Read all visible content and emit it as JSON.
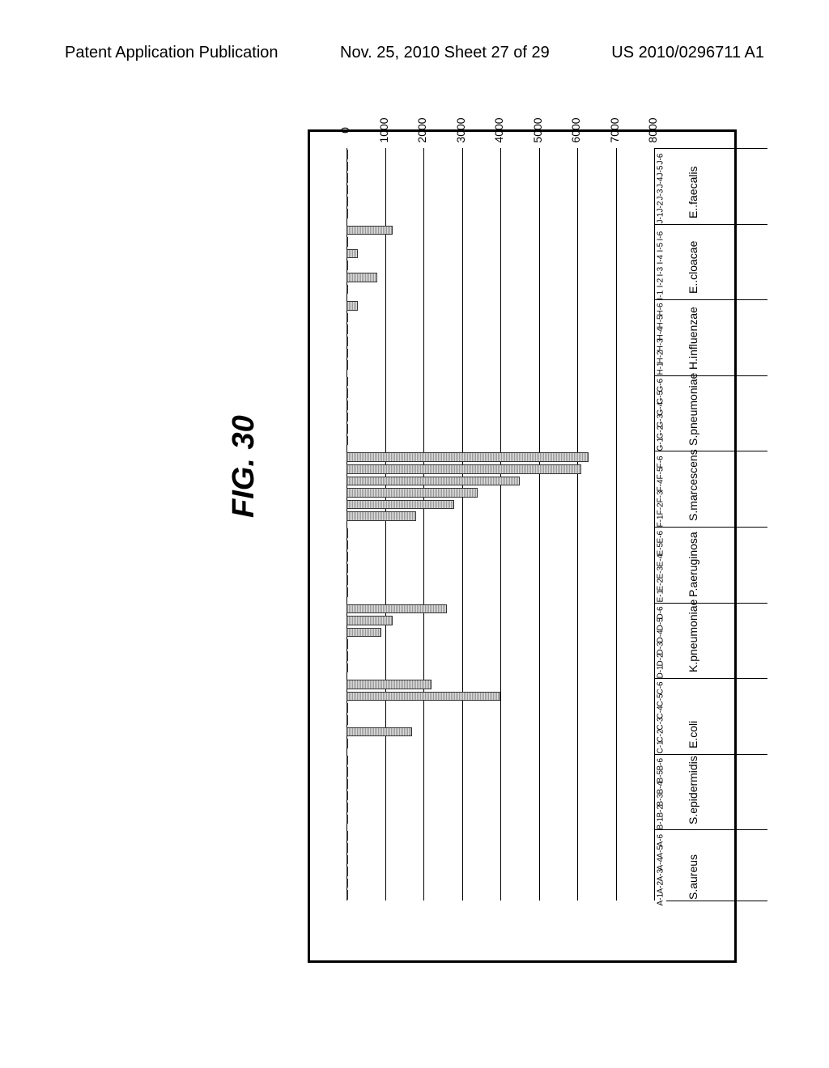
{
  "header": {
    "left": "Patent Application Publication",
    "mid": "Nov. 25, 2010  Sheet 27 of 29",
    "right": "US 2010/0296711 A1"
  },
  "figure_label": "FIG. 30",
  "chart": {
    "type": "bar",
    "orientation": "horizontal-rotated-90",
    "y_axis": {
      "min": 0,
      "max": 8000,
      "step": 1000
    },
    "background_color": "#ffffff",
    "grid_color": "#000000",
    "bar_border_color": "#333333",
    "bar_fill_color": "#bbbbbb",
    "tick_fontsize": 14,
    "bar_label_fontsize": 10,
    "category_label_fontsize": 14,
    "categories": [
      {
        "name": "S.aureus",
        "bars": [
          {
            "label": "A-1",
            "value": 20
          },
          {
            "label": "A-2",
            "value": 20
          },
          {
            "label": "A-3",
            "value": 20
          },
          {
            "label": "A-4",
            "value": 20
          },
          {
            "label": "A-5",
            "value": 20
          },
          {
            "label": "A-6",
            "value": 20
          }
        ]
      },
      {
        "name": "S.epidermidis",
        "bars": [
          {
            "label": "B-1",
            "value": 20
          },
          {
            "label": "B-2",
            "value": 20
          },
          {
            "label": "B-3",
            "value": 20
          },
          {
            "label": "B-4",
            "value": 20
          },
          {
            "label": "B-5",
            "value": 20
          },
          {
            "label": "B-6",
            "value": 20
          }
        ]
      },
      {
        "name": "E.coli",
        "bars": [
          {
            "label": "C-1",
            "value": 20
          },
          {
            "label": "C-2",
            "value": 1700
          },
          {
            "label": "C-3",
            "value": 20
          },
          {
            "label": "C-4",
            "value": 20
          },
          {
            "label": "C-5",
            "value": 4000
          },
          {
            "label": "C-6",
            "value": 2200
          }
        ]
      },
      {
        "name": "K.pneumoniae",
        "bars": [
          {
            "label": "D-1",
            "value": 20
          },
          {
            "label": "D-2",
            "value": 20
          },
          {
            "label": "D-3",
            "value": 20
          },
          {
            "label": "D-4",
            "value": 900
          },
          {
            "label": "D-5",
            "value": 1200
          },
          {
            "label": "D-6",
            "value": 2600
          }
        ]
      },
      {
        "name": "P.aeruginosa",
        "bars": [
          {
            "label": "E-1",
            "value": 20
          },
          {
            "label": "E-2",
            "value": 20
          },
          {
            "label": "E-3",
            "value": 20
          },
          {
            "label": "E-4",
            "value": 20
          },
          {
            "label": "E-5",
            "value": 20
          },
          {
            "label": "E-6",
            "value": 20
          }
        ]
      },
      {
        "name": "S.marcescens",
        "bars": [
          {
            "label": "F-1",
            "value": 1800
          },
          {
            "label": "F-2",
            "value": 2800
          },
          {
            "label": "F-3",
            "value": 3400
          },
          {
            "label": "F-4",
            "value": 4500
          },
          {
            "label": "F-5",
            "value": 6100
          },
          {
            "label": "F-6",
            "value": 6300
          }
        ]
      },
      {
        "name": "S.pneumoniae",
        "bars": [
          {
            "label": "G-1",
            "value": 20
          },
          {
            "label": "G-2",
            "value": 20
          },
          {
            "label": "G-3",
            "value": 20
          },
          {
            "label": "G-4",
            "value": 20
          },
          {
            "label": "G-5",
            "value": 20
          },
          {
            "label": "G-6",
            "value": 20
          }
        ]
      },
      {
        "name": "H.influenzae",
        "bars": [
          {
            "label": "H-1",
            "value": 20
          },
          {
            "label": "H-2",
            "value": 20
          },
          {
            "label": "H-3",
            "value": 20
          },
          {
            "label": "H-4",
            "value": 20
          },
          {
            "label": "H-5",
            "value": 20
          },
          {
            "label": "H-6",
            "value": 300
          }
        ]
      },
      {
        "name": "E..cloacae",
        "bars": [
          {
            "label": "I-1",
            "value": 20
          },
          {
            "label": "I-2",
            "value": 800
          },
          {
            "label": "I-3",
            "value": 20
          },
          {
            "label": "I-4",
            "value": 300
          },
          {
            "label": "I-5",
            "value": 20
          },
          {
            "label": "I-6",
            "value": 1200
          }
        ]
      },
      {
        "name": "E..faecalis",
        "bars": [
          {
            "label": "J-1",
            "value": 20
          },
          {
            "label": "J-2",
            "value": 20
          },
          {
            "label": "J-3",
            "value": 20
          },
          {
            "label": "J-4",
            "value": 20
          },
          {
            "label": "J-5",
            "value": 20
          },
          {
            "label": "J-6",
            "value": 20
          }
        ]
      }
    ]
  }
}
